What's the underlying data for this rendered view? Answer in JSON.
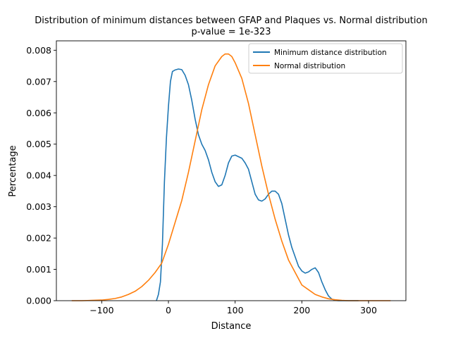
{
  "chart_data": {
    "type": "line",
    "title": "Distribution of minimum distances between GFAP and Plaques vs. Normal distribution",
    "subtitle": "p-value = 1e-323",
    "xlabel": "Distance",
    "ylabel": "Percentage",
    "xlim": [
      -168,
      356
    ],
    "ylim": [
      0,
      0.0083
    ],
    "xticks": [
      -100,
      0,
      100,
      200,
      300
    ],
    "xtick_labels": [
      "−100",
      "0",
      "100",
      "200",
      "300"
    ],
    "yticks": [
      0,
      0.001,
      0.002,
      0.003,
      0.004,
      0.005,
      0.006,
      0.007,
      0.008
    ],
    "ytick_labels": [
      "0.000",
      "0.001",
      "0.002",
      "0.003",
      "0.004",
      "0.005",
      "0.006",
      "0.007",
      "0.008"
    ],
    "grid": false,
    "legend_position": "top-right",
    "series": [
      {
        "name": "Minimum distance distribution",
        "color": "#1f77b4",
        "x": [
          -18,
          -15,
          -12,
          -9,
          -6,
          -3,
          0,
          3,
          6,
          10,
          15,
          20,
          25,
          30,
          35,
          40,
          45,
          50,
          55,
          60,
          65,
          70,
          75,
          80,
          85,
          90,
          95,
          100,
          105,
          110,
          115,
          120,
          125,
          130,
          135,
          140,
          145,
          150,
          155,
          160,
          165,
          170,
          175,
          180,
          185,
          190,
          195,
          200,
          205,
          210,
          215,
          220,
          225,
          230,
          235,
          240,
          245,
          250,
          255,
          260,
          265,
          270,
          275,
          280,
          285
        ],
        "y": [
          0.0,
          0.0002,
          0.0006,
          0.0018,
          0.0038,
          0.0052,
          0.0062,
          0.007,
          0.00732,
          0.00737,
          0.0074,
          0.00738,
          0.0072,
          0.0069,
          0.0064,
          0.0058,
          0.0053,
          0.005,
          0.0048,
          0.0045,
          0.0041,
          0.0038,
          0.00365,
          0.0037,
          0.004,
          0.0044,
          0.00462,
          0.00465,
          0.0046,
          0.00455,
          0.0044,
          0.0042,
          0.0038,
          0.0034,
          0.00322,
          0.00318,
          0.00325,
          0.0034,
          0.0035,
          0.0035,
          0.0034,
          0.0031,
          0.0026,
          0.0021,
          0.0017,
          0.0014,
          0.0011,
          0.00095,
          0.00088,
          0.00092,
          0.001,
          0.00105,
          0.0009,
          0.0006,
          0.00035,
          0.00015,
          5e-05,
          1e-05,
          0.0,
          0.0,
          0.0,
          0.0,
          0.0,
          0.0,
          0.0
        ]
      },
      {
        "name": "Normal distribution",
        "color": "#ff7f0e",
        "x": [
          -145,
          -130,
          -115,
          -100,
          -90,
          -80,
          -70,
          -60,
          -50,
          -40,
          -30,
          -20,
          -10,
          0,
          10,
          20,
          30,
          40,
          50,
          60,
          70,
          80,
          85,
          90,
          95,
          100,
          110,
          120,
          130,
          140,
          150,
          160,
          170,
          180,
          190,
          200,
          210,
          220,
          230,
          240,
          250,
          260,
          270,
          280,
          290,
          300,
          310,
          320,
          333
        ],
        "y": [
          0.0,
          0.0,
          1e-05,
          2e-05,
          4e-05,
          7e-05,
          0.00012,
          0.0002,
          0.0003,
          0.00045,
          0.00065,
          0.0009,
          0.0012,
          0.0018,
          0.0025,
          0.0032,
          0.0041,
          0.0051,
          0.0061,
          0.0069,
          0.0075,
          0.0078,
          0.00788,
          0.00788,
          0.0078,
          0.0076,
          0.0071,
          0.0063,
          0.0053,
          0.0043,
          0.0034,
          0.0026,
          0.0019,
          0.0013,
          0.0009,
          0.0005,
          0.00035,
          0.0002,
          0.00012,
          6e-05,
          3e-05,
          1e-05,
          0.0,
          0.0,
          0.0,
          0.0,
          0.0,
          0.0,
          0.0
        ]
      }
    ]
  }
}
